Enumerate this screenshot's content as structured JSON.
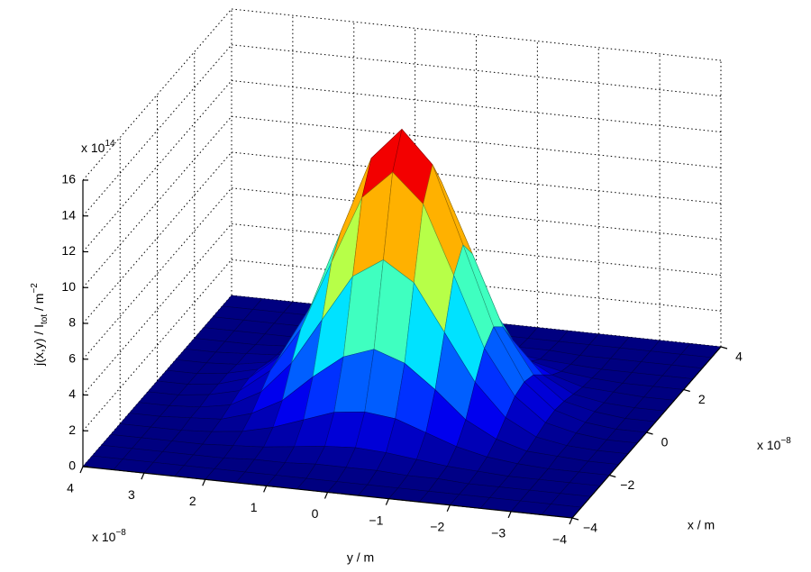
{
  "chart_data": {
    "type": "surface",
    "x": [
      -4,
      -3.5,
      -3,
      -2.5,
      -2,
      -1.5,
      -1,
      -0.5,
      0,
      0.5,
      1,
      1.5,
      2,
      2.5,
      3,
      3.5,
      4
    ],
    "y": [
      -4,
      -3.5,
      -3,
      -2.5,
      -2,
      -1.5,
      -1,
      -0.5,
      0,
      0.5,
      1,
      1.5,
      2,
      2.5,
      3,
      3.5,
      4
    ],
    "z": [
      [
        0,
        0,
        0,
        0,
        0,
        0,
        0,
        0,
        0,
        0,
        0,
        0,
        0,
        0,
        0,
        0,
        0
      ],
      [
        0,
        0,
        0,
        0,
        0,
        0,
        0,
        0,
        0,
        0,
        0,
        0,
        0,
        0,
        0,
        0,
        0
      ],
      [
        0,
        0,
        0,
        0,
        0,
        0.1,
        0.1,
        0.2,
        0.2,
        0.2,
        0.1,
        0.1,
        0,
        0,
        0,
        0,
        0
      ],
      [
        0,
        0,
        0,
        0,
        0.1,
        0.2,
        0.4,
        0.6,
        0.7,
        0.6,
        0.4,
        0.2,
        0.1,
        0,
        0,
        0,
        0
      ],
      [
        0,
        0,
        0,
        0.1,
        0.3,
        0.7,
        1.3,
        1.9,
        2.1,
        1.9,
        1.3,
        0.7,
        0.3,
        0.1,
        0,
        0,
        0
      ],
      [
        0,
        0,
        0.1,
        0.2,
        0.7,
        1.6,
        3.1,
        4.4,
        5.0,
        4.4,
        3.1,
        1.6,
        0.7,
        0.2,
        0.1,
        0,
        0
      ],
      [
        0,
        0,
        0.1,
        0.4,
        1.3,
        3.1,
        5.7,
        8.3,
        9.4,
        8.3,
        5.7,
        3.1,
        1.3,
        0.4,
        0.1,
        0,
        0
      ],
      [
        0,
        0,
        0.2,
        0.6,
        1.9,
        4.4,
        8.3,
        12.1,
        13.7,
        12.1,
        8.3,
        4.4,
        1.9,
        0.6,
        0.2,
        0,
        0
      ],
      [
        0,
        0,
        0.2,
        0.7,
        2.1,
        5.0,
        9.4,
        13.7,
        15.5,
        13.7,
        9.4,
        5.0,
        2.1,
        0.7,
        0.2,
        0,
        0
      ],
      [
        0,
        0,
        0.2,
        0.6,
        1.9,
        4.4,
        8.3,
        12.1,
        13.7,
        12.1,
        8.3,
        4.4,
        1.9,
        0.6,
        0.2,
        0,
        0
      ],
      [
        0,
        0,
        0.1,
        0.4,
        1.3,
        3.1,
        5.7,
        8.3,
        9.4,
        8.3,
        5.7,
        3.1,
        1.3,
        0.4,
        0.1,
        0,
        0
      ],
      [
        0,
        0,
        0.1,
        0.2,
        0.7,
        1.6,
        3.1,
        4.4,
        5.0,
        4.4,
        3.1,
        1.6,
        0.7,
        0.2,
        0.1,
        0,
        0
      ],
      [
        0,
        0,
        0,
        0.1,
        0.3,
        0.7,
        1.3,
        1.9,
        2.1,
        1.9,
        1.3,
        0.7,
        0.3,
        0.1,
        0,
        0,
        0
      ],
      [
        0,
        0,
        0,
        0,
        0.1,
        0.2,
        0.4,
        0.6,
        0.7,
        0.6,
        0.4,
        0.2,
        0.1,
        0,
        0,
        0,
        0
      ],
      [
        0,
        0,
        0,
        0,
        0,
        0.1,
        0.1,
        0.2,
        0.2,
        0.2,
        0.1,
        0.1,
        0,
        0,
        0,
        0,
        0
      ],
      [
        0,
        0,
        0,
        0,
        0,
        0,
        0,
        0,
        0,
        0,
        0,
        0,
        0,
        0,
        0,
        0,
        0
      ],
      [
        0,
        0,
        0,
        0,
        0,
        0,
        0,
        0,
        0,
        0,
        0,
        0,
        0,
        0,
        0,
        0,
        0
      ]
    ],
    "colormap": "jet",
    "xlim": [
      -4,
      4
    ],
    "ylim": [
      -4,
      4
    ],
    "zlim": [
      0,
      16
    ],
    "xticks": [
      {
        "value": -4,
        "label": "−4"
      },
      {
        "value": -2,
        "label": "−2"
      },
      0,
      2,
      4
    ],
    "yticks": [
      {
        "value": -4,
        "label": "−4"
      },
      {
        "value": -3,
        "label": "−3"
      },
      {
        "value": -2,
        "label": "−2"
      },
      {
        "value": -1,
        "label": "−1"
      },
      0,
      1,
      2,
      3,
      4
    ],
    "zticks": [
      0,
      2,
      4,
      6,
      8,
      10,
      12,
      14,
      16
    ],
    "xlabel": "x / m",
    "ylabel": "y / m",
    "zlabel": {
      "main": "j(x,y) / I",
      "sub": "tot",
      "unit": " / m",
      "sup": "−2"
    },
    "x_multiplier": {
      "base": "x 10",
      "exponent": "−8"
    },
    "y_multiplier": {
      "base": "x 10",
      "exponent": "−8"
    },
    "z_multiplier": {
      "base": "x 10",
      "exponent": "14"
    },
    "grid": true
  }
}
